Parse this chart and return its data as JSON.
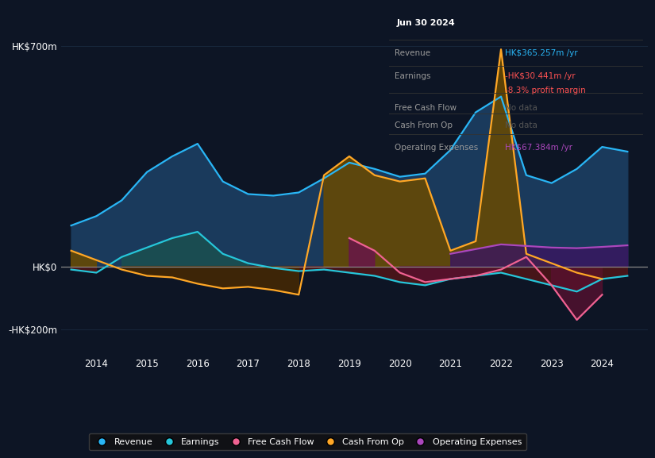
{
  "background_color": "#0d1525",
  "plot_bg_color": "#0d1525",
  "ylabel_700": "HK$700m",
  "ylabel_0": "HK$0",
  "ylabel_neg200": "-HK$200m",
  "years": [
    2013.5,
    2014.0,
    2014.5,
    2015.0,
    2015.5,
    2016.0,
    2016.5,
    2017.0,
    2017.5,
    2018.0,
    2018.5,
    2019.0,
    2019.5,
    2020.0,
    2020.5,
    2021.0,
    2021.5,
    2022.0,
    2022.5,
    2023.0,
    2023.5,
    2024.0,
    2024.5
  ],
  "revenue": [
    130,
    160,
    210,
    300,
    350,
    390,
    270,
    230,
    225,
    235,
    280,
    330,
    310,
    285,
    295,
    370,
    490,
    540,
    290,
    265,
    310,
    380,
    365
  ],
  "earnings": [
    -10,
    -20,
    30,
    60,
    90,
    110,
    40,
    10,
    -5,
    -15,
    -10,
    -20,
    -30,
    -50,
    -60,
    -40,
    -30,
    -20,
    -40,
    -60,
    -80,
    -40,
    -30
  ],
  "free_cash_flow": [
    null,
    null,
    null,
    null,
    null,
    null,
    null,
    null,
    null,
    null,
    null,
    90,
    50,
    -20,
    -50,
    -40,
    -30,
    -10,
    30,
    -60,
    -170,
    -90,
    null
  ],
  "cash_from_op": [
    50,
    20,
    -10,
    -30,
    -35,
    -55,
    -70,
    -65,
    -75,
    -90,
    290,
    350,
    290,
    270,
    280,
    50,
    80,
    690,
    40,
    10,
    -20,
    -40,
    null
  ],
  "operating_expenses": [
    null,
    null,
    null,
    null,
    null,
    null,
    null,
    null,
    null,
    null,
    null,
    null,
    null,
    null,
    null,
    40,
    55,
    70,
    65,
    60,
    58,
    62,
    67
  ],
  "revenue_color": "#29b6f6",
  "earnings_color": "#26c6da",
  "free_cash_flow_color": "#f06292",
  "cash_from_op_color": "#ffa726",
  "operating_expenses_color": "#ab47bc",
  "zero_line_color": "#888888",
  "grid_color": "#1a2a40",
  "xticks": [
    2014,
    2015,
    2016,
    2017,
    2018,
    2019,
    2020,
    2021,
    2022,
    2023,
    2024
  ],
  "xlim": [
    2013.3,
    2024.9
  ],
  "ylim": [
    -280,
    780
  ],
  "infobox": {
    "title": "Jun 30 2024",
    "revenue_label": "Revenue",
    "revenue_value": "HK$365.257m /yr",
    "revenue_color": "#29b6f6",
    "earnings_label": "Earnings",
    "earnings_value": "-HK$30.441m /yr",
    "earnings_color": "#ff5252",
    "margin_value": "-8.3% profit margin",
    "margin_color": "#ff5252",
    "fcf_label": "Free Cash Flow",
    "fcf_value": "No data",
    "fcf_color": "#555555",
    "cashop_label": "Cash From Op",
    "cashop_value": "No data",
    "cashop_color": "#555555",
    "opex_label": "Operating Expenses",
    "opex_value": "HK$67.384m /yr",
    "opex_color": "#ab47bc",
    "label_color": "#999999",
    "bg_color": "#0a0a0a",
    "border_color": "#444444"
  }
}
